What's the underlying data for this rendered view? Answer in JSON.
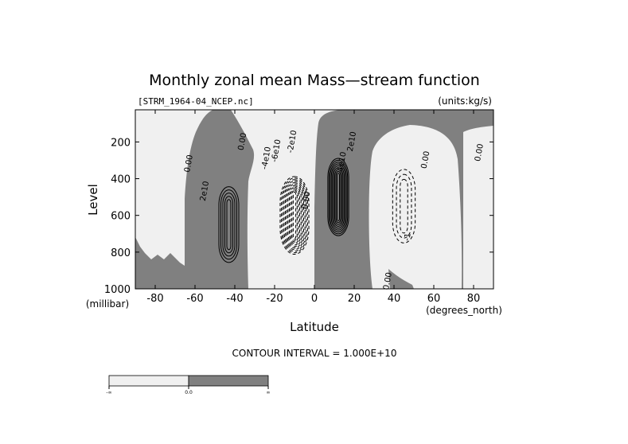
{
  "chart_data": {
    "type": "contour",
    "title": "Monthly zonal mean Mass—stream function",
    "file_label": "[STRM_1964-04_NCEP.nc]",
    "units_label": "(units:kg/s)",
    "xlabel": "Latitude",
    "ylabel": "Level",
    "x_unit": "(degrees_north)",
    "y_unit": "(millibar)",
    "xlim": [
      -90,
      90
    ],
    "ylim": [
      1000,
      25
    ],
    "x_ticks": [
      -80,
      -60,
      -40,
      -20,
      0,
      20,
      40,
      60,
      80
    ],
    "x_tick_labels": [
      "-80",
      "-60",
      "-40",
      "-20",
      "0",
      "20",
      "40",
      "60",
      "80"
    ],
    "y_ticks": [
      200,
      400,
      600,
      800,
      1000
    ],
    "y_tick_labels": [
      "200",
      "400",
      "600",
      "800",
      "1000"
    ],
    "contour_interval_text": "CONTOUR INTERVAL = 1.000E+10",
    "contour_interval": 10000000000.0,
    "contour_labels": [
      {
        "text": "0.00",
        "lat": -62,
        "p": 320
      },
      {
        "text": "2e10",
        "lat": -54,
        "p": 470
      },
      {
        "text": "0.00",
        "lat": -35,
        "p": 200
      },
      {
        "text": "-4e10",
        "lat": -23,
        "p": 290
      },
      {
        "text": "-6e10",
        "lat": -18,
        "p": 250
      },
      {
        "text": "-2e10",
        "lat": -10,
        "p": 200
      },
      {
        "text": "0.00",
        "lat": -3,
        "p": 520
      },
      {
        "text": "4e10",
        "lat": 15,
        "p": 310
      },
      {
        "text": "2e10",
        "lat": 20,
        "p": 200
      },
      {
        "text": "0.00",
        "lat": 57,
        "p": 300
      },
      {
        "text": "-1",
        "lat": 48,
        "p": 720
      },
      {
        "text": "0.00",
        "lat": 84,
        "p": 260
      },
      {
        "text": "0.00",
        "lat": 38,
        "p": 960
      }
    ],
    "cells": [
      {
        "name": "southern-ferrel-cell",
        "sign": "positive",
        "center_lat": -43,
        "center_p": 650,
        "max": 50000000000.0
      },
      {
        "name": "southern-hadley-cell",
        "sign": "negative",
        "center_lat": -10,
        "center_p": 600,
        "min": -110000000000.0
      },
      {
        "name": "northern-hadley-cell",
        "sign": "positive",
        "center_lat": 12,
        "center_p": 500,
        "max": 90000000000.0
      },
      {
        "name": "northern-ferrel-cell",
        "sign": "negative",
        "center_lat": 45,
        "center_p": 550,
        "min": -30000000000.0
      }
    ],
    "colorbar": {
      "center_label": "0.0",
      "left_label": "-∞",
      "right_label": "∞",
      "colors": [
        "#f0f0f0",
        "#808080"
      ]
    },
    "shade_negative": "#f0f0f0",
    "shade_positive": "#808080"
  }
}
